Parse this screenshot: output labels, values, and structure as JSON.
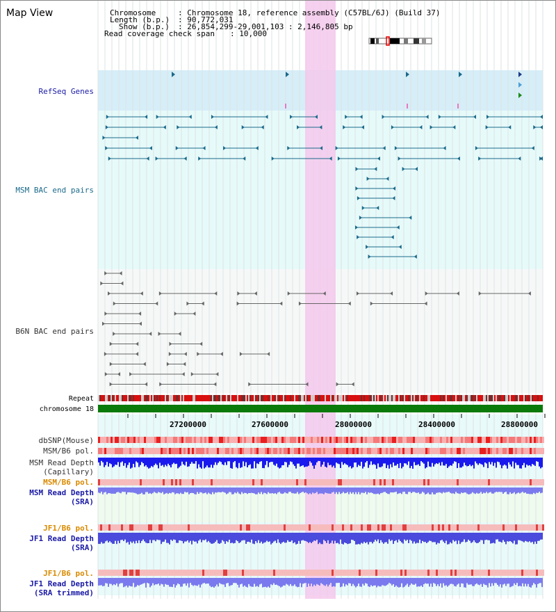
{
  "title": "Map View",
  "header": {
    "chromosome_key": "Chromosome",
    "chromosome_val": ": Chromosome 18, reference assembly (C57BL/6J) (Build 37)",
    "length_key": "Length (b.p.)",
    "length_val": ": 90,772,031",
    "show_key": "Show (b.p.)",
    "show_val": ": 26,854,299-29,001,103 : 2,146,805 bp",
    "coverage_key": "Read coverage check span",
    "coverage_val": ": 10,000"
  },
  "tracks": {
    "refseq": "RefSeq Genes",
    "msm_bac": "MSM BAC end pairs",
    "b6n_bac": "B6N BAC end pairs",
    "repeat": "Repeat",
    "chromosome": "chromosome 18",
    "dbsnp": "dbSNP(Mouse)",
    "msm_b6_pol_1": "MSM/B6 pol.",
    "msm_read_depth_cap_1": "MSM Read Depth",
    "msm_read_depth_cap_2": "(Capillary)",
    "msm_b6_pol_2": "MSM/B6 pol.",
    "msm_read_depth_sra_1": "MSM Read Depth",
    "msm_read_depth_sra_2": "(SRA)",
    "jf1_b6_pol_1": "JF1/B6 pol.",
    "jf1_read_depth_sra_1": "JF1 Read Depth",
    "jf1_read_depth_sra_2": "(SRA)",
    "jf1_b6_pol_2": "JF1/B6 pol.",
    "jf1_read_depth_trim_1": "JF1 Read Depth",
    "jf1_read_depth_trim_2": "(SRA trimmed)"
  },
  "axis_ticks": [
    "27200000",
    "27600000",
    "28000000",
    "28400000",
    "28800000"
  ],
  "colors": {
    "refseq_label": "#1a1aa6",
    "msm_label": "#1a6a8a",
    "b6n_label": "#333333",
    "pol_orange": "#d98a00",
    "jf1_label": "#1a1aa6",
    "highlight": "#f4c8ec",
    "depth_blue": "#1a1aee",
    "depth_light": "#7a7aee",
    "chrom_green": "#0a7a0a"
  }
}
